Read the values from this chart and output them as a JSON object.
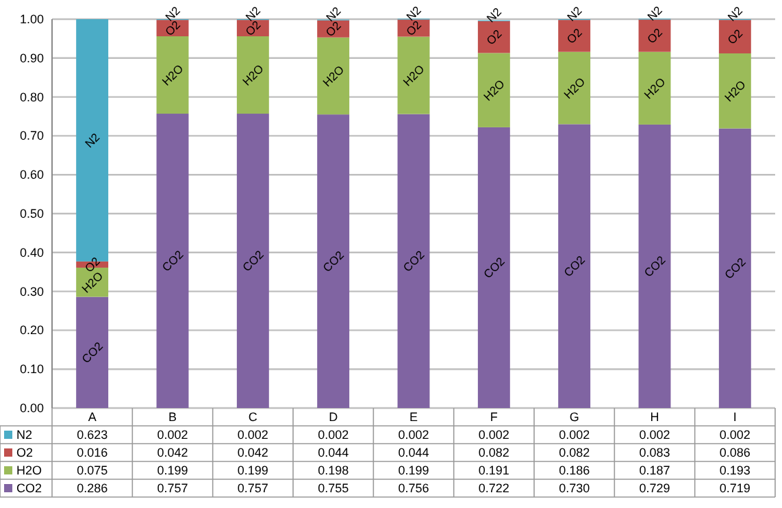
{
  "chart_data": {
    "type": "bar",
    "stacked": true,
    "categories": [
      "A",
      "B",
      "C",
      "D",
      "E",
      "F",
      "G",
      "H",
      "I"
    ],
    "series": [
      {
        "name": "CO2",
        "color": "#8064a2",
        "values": [
          0.286,
          0.757,
          0.757,
          0.755,
          0.756,
          0.722,
          0.73,
          0.729,
          0.719
        ],
        "value_labels": [
          "0.286",
          "0.757",
          "0.757",
          "0.755",
          "0.756",
          "0.722",
          "0.730",
          "0.729",
          "0.719"
        ]
      },
      {
        "name": "H2O",
        "color": "#9bbb59",
        "values": [
          0.075,
          0.199,
          0.199,
          0.198,
          0.199,
          0.191,
          0.186,
          0.187,
          0.193
        ],
        "value_labels": [
          "0.075",
          "0.199",
          "0.199",
          "0.198",
          "0.199",
          "0.191",
          "0.186",
          "0.187",
          "0.193"
        ]
      },
      {
        "name": "O2",
        "color": "#c0504d",
        "values": [
          0.016,
          0.042,
          0.042,
          0.044,
          0.044,
          0.082,
          0.082,
          0.083,
          0.086
        ],
        "value_labels": [
          "0.016",
          "0.042",
          "0.042",
          "0.044",
          "0.044",
          "0.082",
          "0.082",
          "0.083",
          "0.086"
        ]
      },
      {
        "name": "N2",
        "color": "#4bacc6",
        "values": [
          0.623,
          0.002,
          0.002,
          0.002,
          0.002,
          0.002,
          0.002,
          0.002,
          0.002
        ],
        "value_labels": [
          "0.623",
          "0.002",
          "0.002",
          "0.002",
          "0.002",
          "0.002",
          "0.002",
          "0.002",
          "0.002"
        ]
      }
    ],
    "ylim": [
      0,
      1
    ],
    "yticks": [
      {
        "value": 0,
        "label": "0.00"
      },
      {
        "value": 0.1,
        "label": "0.10"
      },
      {
        "value": 0.2,
        "label": "0.20"
      },
      {
        "value": 0.3,
        "label": "0.30"
      },
      {
        "value": 0.4,
        "label": "0.40"
      },
      {
        "value": 0.5,
        "label": "0.50"
      },
      {
        "value": 0.6,
        "label": "0.60"
      },
      {
        "value": 0.7,
        "label": "0.70"
      },
      {
        "value": 0.8,
        "label": "0.80"
      },
      {
        "value": 0.9,
        "label": "0.90"
      },
      {
        "value": 1,
        "label": "1.00"
      }
    ],
    "grid": "y",
    "legend": "bottom"
  }
}
